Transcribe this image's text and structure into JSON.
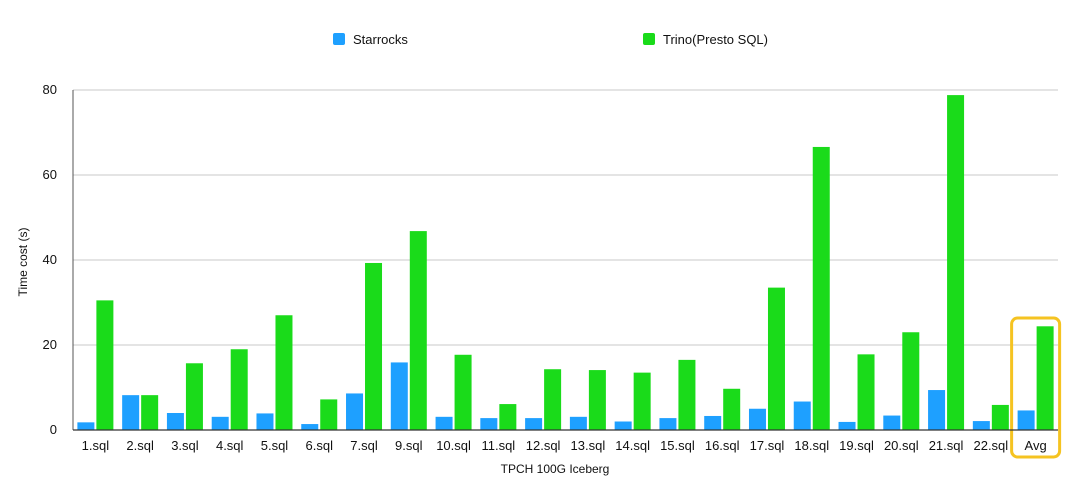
{
  "chart_data": {
    "type": "bar",
    "title": "",
    "xlabel": "TPCH 100G Iceberg",
    "ylabel": "Time cost  (s)",
    "ylim": [
      0,
      80
    ],
    "yticks": [
      0,
      20,
      40,
      60,
      80
    ],
    "grid": true,
    "legend_position": "top",
    "categories": [
      "1.sql",
      "2.sql",
      "3.sql",
      "4.sql",
      "5.sql",
      "6.sql",
      "7.sql",
      "9.sql",
      "10.sql",
      "11.sql",
      "12.sql",
      "13.sql",
      "14.sql",
      "15.sql",
      "16.sql",
      "17.sql",
      "18.sql",
      "19.sql",
      "20.sql",
      "21.sql",
      "22.sql",
      "Avg"
    ],
    "series": [
      {
        "name": "Starrocks",
        "color": "#1ea0ff",
        "values": [
          1.8,
          8.2,
          4.0,
          3.1,
          3.9,
          1.4,
          8.6,
          15.9,
          3.1,
          2.8,
          2.8,
          3.1,
          2.0,
          2.8,
          3.3,
          5.0,
          6.7,
          1.9,
          3.4,
          9.4,
          2.1,
          4.6
        ]
      },
      {
        "name": "Trino(Presto SQL)",
        "color": "#1adb1a",
        "values": [
          30.5,
          8.2,
          15.7,
          19.0,
          27.0,
          7.2,
          39.3,
          46.8,
          17.7,
          6.1,
          14.3,
          14.1,
          13.5,
          16.5,
          9.7,
          33.5,
          66.6,
          17.8,
          23.0,
          78.8,
          5.9,
          24.4
        ]
      }
    ],
    "highlight": {
      "category": "Avg",
      "color": "#f5c321"
    }
  }
}
